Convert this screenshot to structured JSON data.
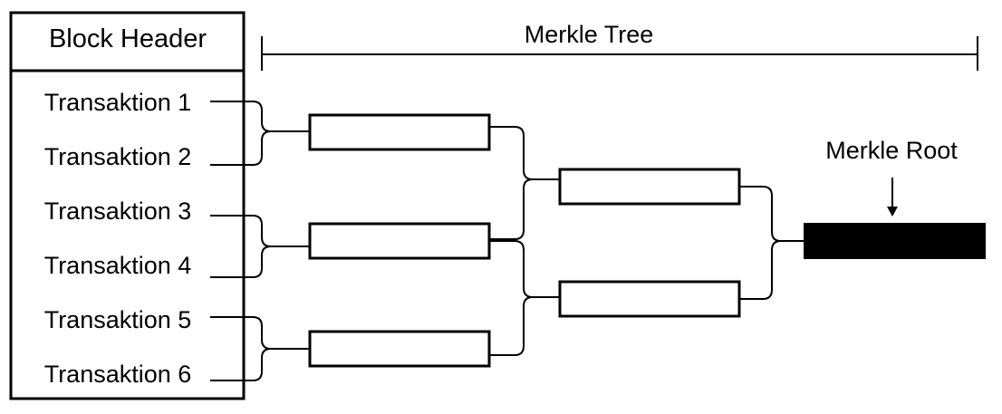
{
  "block_header": {
    "title": "Block Header"
  },
  "transactions": [
    "Transaktion 1",
    "Transaktion 2",
    "Transaktion 3",
    "Transaktion 4",
    "Transaktion 5",
    "Transaktion 6"
  ],
  "merkle_tree": {
    "label": "Merkle Tree"
  },
  "merkle_root": {
    "label": "Merkle Root",
    "fill_color": "#000000"
  },
  "colors": {
    "stroke": "#000000",
    "background": "#ffffff"
  }
}
